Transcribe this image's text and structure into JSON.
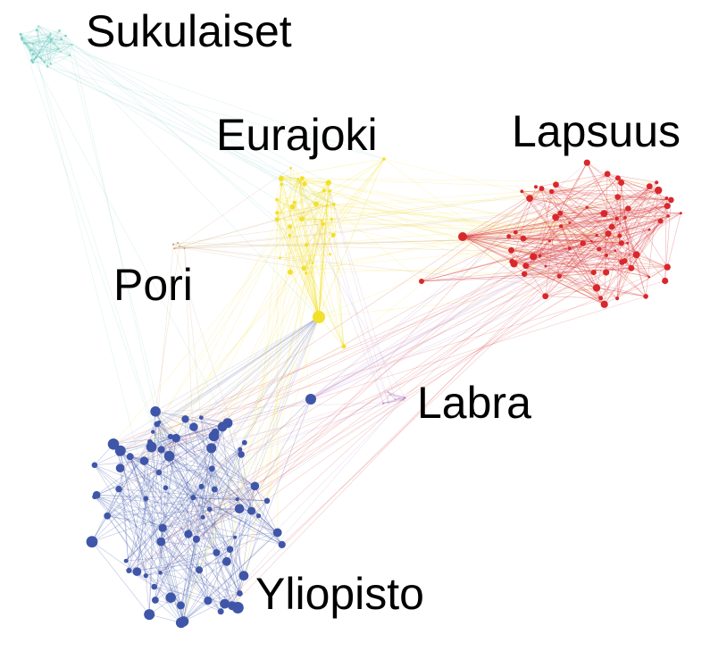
{
  "clusters": [
    {
      "key": "sukulaiset",
      "label": "Sukulaiset",
      "color": "#7fd1c8"
    },
    {
      "key": "eurajoki",
      "label": "Eurajoki",
      "color": "#f2e02a"
    },
    {
      "key": "lapsuus",
      "label": "Lapsuus",
      "color": "#d8282c"
    },
    {
      "key": "pori",
      "label": "Pori",
      "color": "#c8a06e"
    },
    {
      "key": "labra",
      "label": "Labra",
      "color": "#b98fcf"
    },
    {
      "key": "yliopisto",
      "label": "Yliopisto",
      "color": "#3f56a8"
    }
  ]
}
